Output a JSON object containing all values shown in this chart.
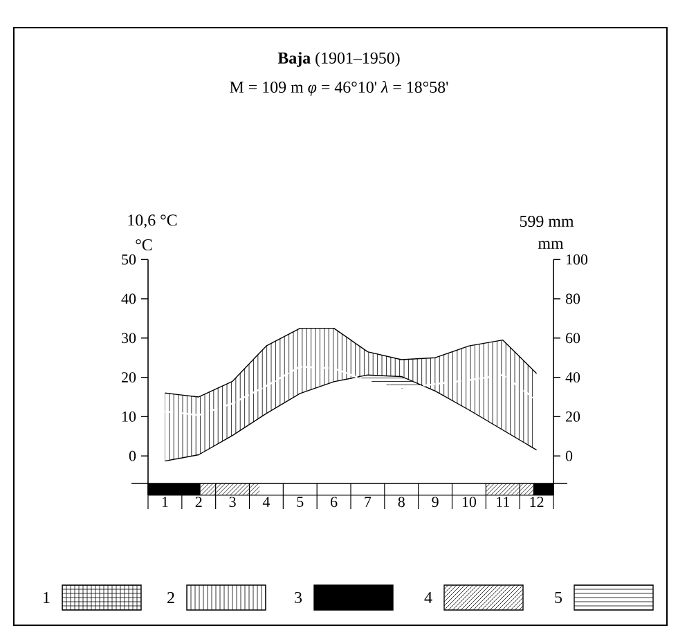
{
  "chart_data": {
    "type": "line",
    "title": "**Baja**  (1901–1950)",
    "subtitle": "M = 109 m   *φ* = 46°10'   *λ* = 18°58'",
    "ylabel": "°C",
    "y2label": "mm",
    "annotations": [
      "10,6 °C",
      "599 mm",
      "1",
      "2",
      "3",
      "4",
      "5"
    ],
    "categories": [
      "1",
      "2",
      "3",
      "4",
      "5",
      "6",
      "7",
      "8",
      "9",
      "10",
      "11",
      "12"
    ],
    "series": [
      {
        "color": "#000000",
        "values": [
          -1.3,
          0.3,
          5.2,
          10.8,
          15.9,
          18.9,
          20.6,
          20.2,
          16.5,
          11.7,
          6.6,
          1.5
        ]
      },
      {
        "color": "#000000",
        "axis": "y2",
        "values": [
          32,
          30,
          38,
          56,
          65,
          65,
          53,
          49,
          50,
          56,
          59,
          42
        ]
      },
      {
        "color": "#ffffff",
        "line_style": "dashed",
        "values": [
          11.3,
          10.4,
          13.4,
          17.8,
          22.7,
          22.3,
          19,
          17.2,
          18.3,
          19.3,
          20.6,
          14.2
        ]
      }
    ],
    "ylim": [
      -10,
      50
    ],
    "yticks": [
      0,
      10,
      20,
      30,
      40,
      50
    ],
    "y2lim": [
      -20,
      100
    ],
    "y2ticks": [
      0,
      20,
      40,
      60,
      80,
      100
    ]
  }
}
